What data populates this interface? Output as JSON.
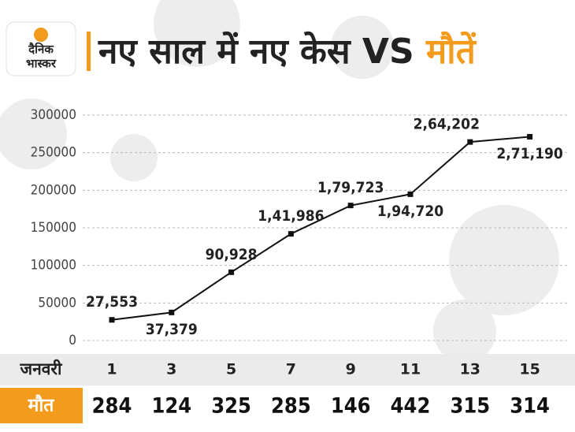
{
  "logo": {
    "line1": "दैनिक",
    "line2": "भास्कर"
  },
  "chart_data": {
    "type": "line",
    "title": "नए साल में नए केस VS ",
    "title_highlight": "मौतें",
    "x_label": "जनवरी",
    "categories": [
      "1",
      "3",
      "5",
      "7",
      "9",
      "11",
      "13",
      "15"
    ],
    "values": [
      27553,
      37379,
      90928,
      141986,
      179723,
      194720,
      264202,
      271190
    ],
    "value_labels": [
      "27,553",
      "37,379",
      "90,928",
      "1,41,986",
      "1,79,723",
      "1,94,720",
      "2,64,202",
      "2,71,190"
    ],
    "color": "#111111",
    "ylim": [
      0,
      300000
    ],
    "yticks": [
      0,
      50000,
      100000,
      150000,
      200000,
      250000,
      300000
    ],
    "grid": true,
    "deaths": {
      "label": "मौत",
      "values": [
        284,
        124,
        325,
        285,
        146,
        442,
        315,
        314
      ]
    }
  }
}
